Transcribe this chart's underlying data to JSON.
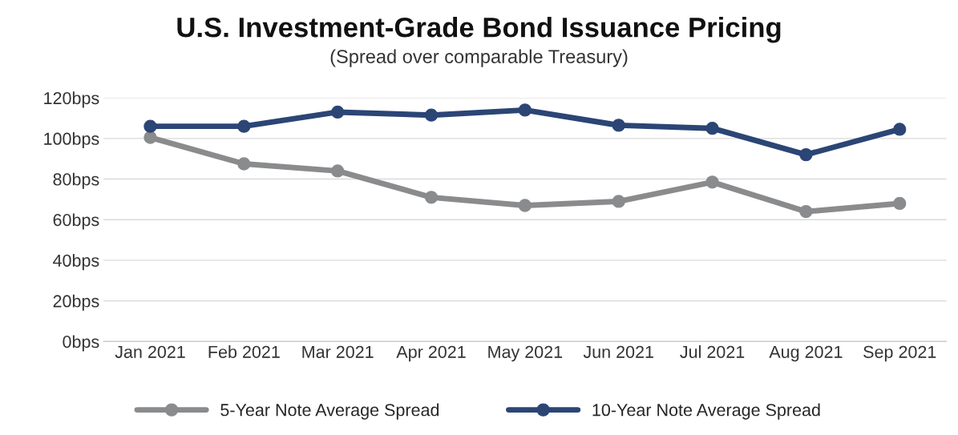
{
  "chart_data": {
    "type": "line",
    "title": "U.S. Investment-Grade Bond Issuance Pricing",
    "subtitle": "(Spread over comparable Treasury)",
    "categories": [
      "Jan 2021",
      "Feb 2021",
      "Mar 2021",
      "Apr 2021",
      "May 2021",
      "Jun 2021",
      "Jul 2021",
      "Aug 2021",
      "Sep 2021"
    ],
    "series": [
      {
        "name": "5-Year Note Average Spread",
        "color": "#8a8b8d",
        "values": [
          100.5,
          87.5,
          84,
          71,
          67,
          69,
          78.5,
          64,
          68
        ]
      },
      {
        "name": "10-Year Note Average Spread",
        "color": "#2b4575",
        "values": [
          106,
          106,
          113,
          111.5,
          114,
          106.5,
          105,
          92,
          104.5
        ]
      }
    ],
    "ylim": [
      0,
      120
    ],
    "yticks": [
      {
        "value": 0,
        "label": "0bps"
      },
      {
        "value": 20,
        "label": "20bps"
      },
      {
        "value": 40,
        "label": "40bps"
      },
      {
        "value": 60,
        "label": "60bps"
      },
      {
        "value": 80,
        "label": "80bps"
      },
      {
        "value": 100,
        "label": "100bps"
      },
      {
        "value": 120,
        "label": "120bps"
      }
    ],
    "grid": "y",
    "legend": "bottom",
    "marker": "circle",
    "line_style": "solid"
  }
}
